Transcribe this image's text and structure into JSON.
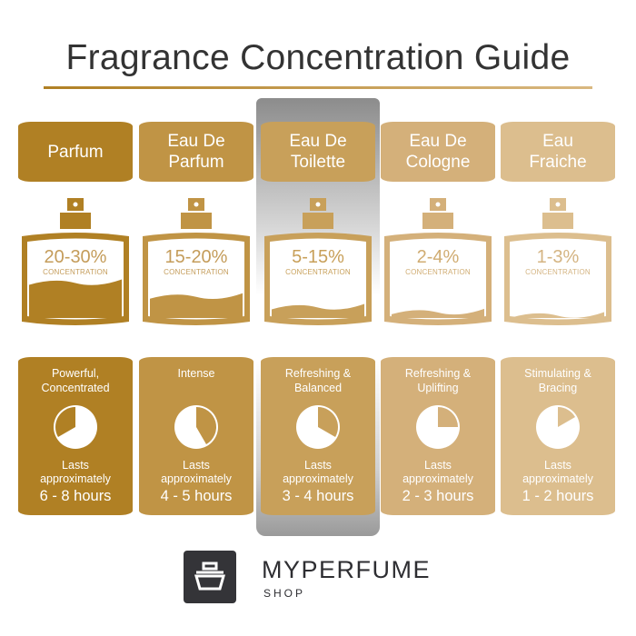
{
  "title": "Fragrance Concentration Guide",
  "highlighted_index": 2,
  "colors": {
    "title": "#333333",
    "rule": "#b08024",
    "logo_bg": "#343438"
  },
  "columns": [
    {
      "name": "Parfum",
      "concentration": "20-30%",
      "concentration_label": "CONCENTRATION",
      "liquid_level": 0.45,
      "description": "Powerful,\nConcentrated",
      "lasts": "Lasts\napproximately",
      "hours": "6 - 8 hours",
      "color": "#b08024",
      "text_color": "#c49c5a",
      "pie_wedge_deg": [
        240,
        360
      ]
    },
    {
      "name": "Eau De\nParfum",
      "concentration": "15-20%",
      "concentration_label": "CONCENTRATION",
      "liquid_level": 0.28,
      "description": "Intense",
      "lasts": "Lasts\napproximately",
      "hours": "4 - 5 hours",
      "color": "#c09445",
      "text_color": "#c49c5a",
      "pie_wedge_deg": [
        0,
        150
      ]
    },
    {
      "name": "Eau De\nToilette",
      "concentration": "5-15%",
      "concentration_label": "CONCENTRATION",
      "liquid_level": 0.15,
      "description": "Refreshing &\nBalanced",
      "lasts": "Lasts\napproximately",
      "hours": "3 - 4 hours",
      "color": "#c8a05a",
      "text_color": "#c8a05a",
      "pie_wedge_deg": [
        0,
        120
      ]
    },
    {
      "name": "Eau De\nCologne",
      "concentration": "2-4%",
      "concentration_label": "CONCENTRATION",
      "liquid_level": 0.09,
      "description": "Refreshing &\nUplifting",
      "lasts": "Lasts\napproximately",
      "hours": "2 - 3 hours",
      "color": "#d4b07a",
      "text_color": "#d0ac72",
      "pie_wedge_deg": [
        0,
        90
      ]
    },
    {
      "name": "Eau\nFraiche",
      "concentration": "1-3%",
      "concentration_label": "CONCENTRATION",
      "liquid_level": 0.05,
      "description": "Stimulating &\nBracing",
      "lasts": "Lasts\napproximately",
      "hours": "1 - 2 hours",
      "color": "#dcbe8e",
      "text_color": "#d4b482",
      "pie_wedge_deg": [
        0,
        60
      ]
    }
  ],
  "brand": {
    "name": "MYPERFUME",
    "sub": "SHOP"
  }
}
